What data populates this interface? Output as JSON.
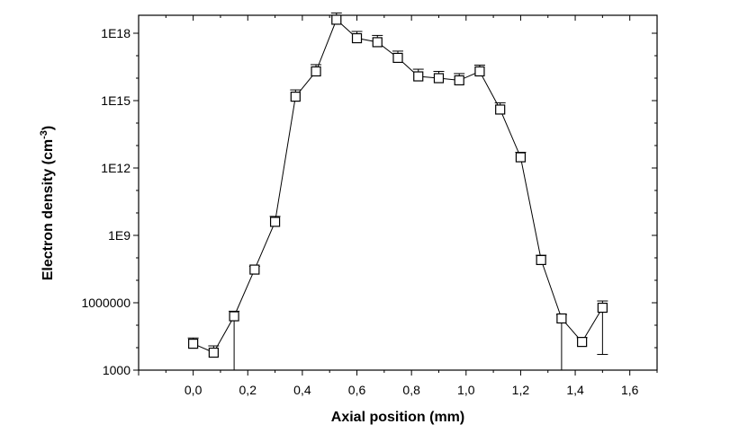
{
  "chart_data": {
    "type": "scatter",
    "xlabel": "Axial position (mm)",
    "ylabel_main": "Electron density (cm",
    "ylabel_sup": "-3",
    "ylabel_close": ")",
    "xlim": [
      -0.2,
      1.7
    ],
    "ylim_log10": [
      3,
      18.8
    ],
    "y_scale": "log",
    "x_ticks": [
      0.0,
      0.2,
      0.4,
      0.6,
      0.8,
      1.0,
      1.2,
      1.4,
      1.6
    ],
    "x_tick_labels": [
      "0,0",
      "0,2",
      "0,4",
      "0,6",
      "0,8",
      "1,0",
      "1,2",
      "1,4",
      "1,6"
    ],
    "y_ticks": [
      1000,
      1000000,
      1000000000.0,
      1000000000000.0,
      1000000000000000.0,
      1e+18
    ],
    "y_tick_labels": [
      "1000",
      "1000000",
      "1E9",
      "1E12",
      "1E15",
      "1E18"
    ],
    "grid": false,
    "marker": "open-square",
    "x": [
      0.0,
      0.075,
      0.15,
      0.225,
      0.3,
      0.375,
      0.45,
      0.525,
      0.6,
      0.675,
      0.75,
      0.825,
      0.9,
      0.975,
      1.05,
      1.125,
      1.2,
      1.275,
      1.35,
      1.425,
      1.5
    ],
    "y": [
      15000,
      6000,
      250000,
      30000000,
      4000000000,
      1500000000000000.0,
      2e+16,
      4e+18,
      6e+17,
      4e+17,
      8e+16,
      1.2e+16,
      1e+16,
      8000000000000000.0,
      2e+16,
      400000000000000.0,
      3000000000000.0,
      80000000.0,
      200000,
      18000,
      600000
    ],
    "error_upper": [
      27000,
      12000,
      420000,
      42000000,
      7000000000,
      3000000000000000.0,
      4e+16,
      8e+18,
      1.2e+18,
      8e+17,
      1.6e+17,
      2.5e+16,
      2e+16,
      1.6e+16,
      3.8e+16,
      800000000000000.0,
      5000000000000.0,
      130000000.0,
      300000,
      28000,
      1200000
    ],
    "error_lower": [
      null,
      null,
      1000,
      null,
      null,
      null,
      null,
      null,
      null,
      null,
      null,
      null,
      null,
      null,
      null,
      null,
      null,
      null,
      1000,
      null,
      5000
    ]
  }
}
